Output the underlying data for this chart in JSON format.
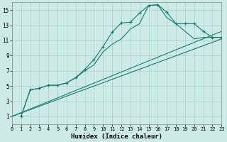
{
  "xlabel": "Humidex (Indice chaleur)",
  "bg_color": "#cceae6",
  "grid_color": "#aacfcc",
  "line_color": "#1a7a6e",
  "xlim": [
    0,
    23
  ],
  "ylim": [
    0,
    16
  ],
  "xticks": [
    0,
    1,
    2,
    3,
    4,
    5,
    6,
    7,
    8,
    9,
    10,
    11,
    12,
    13,
    14,
    15,
    16,
    17,
    18,
    19,
    20,
    21,
    22,
    23
  ],
  "yticks": [
    1,
    3,
    5,
    7,
    9,
    11,
    13,
    15
  ],
  "series_marked": {
    "x": [
      1,
      2,
      3,
      4,
      5,
      6,
      7,
      8,
      9,
      10,
      11,
      12,
      13,
      14,
      15,
      16,
      17,
      18,
      19,
      20,
      21,
      22,
      23
    ],
    "y": [
      1,
      4.5,
      4.7,
      5.1,
      5.1,
      5.4,
      6.1,
      7.2,
      8.5,
      10.2,
      12.1,
      13.3,
      13.4,
      14.6,
      15.6,
      15.7,
      14.7,
      13.2,
      13.2,
      13.2,
      12.2,
      11.4,
      11.4
    ]
  },
  "series_smooth": {
    "x": [
      1,
      2,
      3,
      4,
      5,
      6,
      7,
      8,
      9,
      10,
      11,
      12,
      13,
      14,
      15,
      16,
      17,
      18,
      19,
      20,
      21,
      22,
      23
    ],
    "y": [
      1,
      4.5,
      4.7,
      5.1,
      5.1,
      5.4,
      6.1,
      7.0,
      7.8,
      9.5,
      10.5,
      11.2,
      12.5,
      13.2,
      15.6,
      15.7,
      14.0,
      13.2,
      12.2,
      11.2,
      11.4,
      11.4,
      11.4
    ]
  },
  "diag1": {
    "x": [
      0,
      23
    ],
    "y": [
      1,
      12.2
    ]
  },
  "diag2": {
    "x": [
      0,
      23
    ],
    "y": [
      1,
      11.2
    ]
  }
}
